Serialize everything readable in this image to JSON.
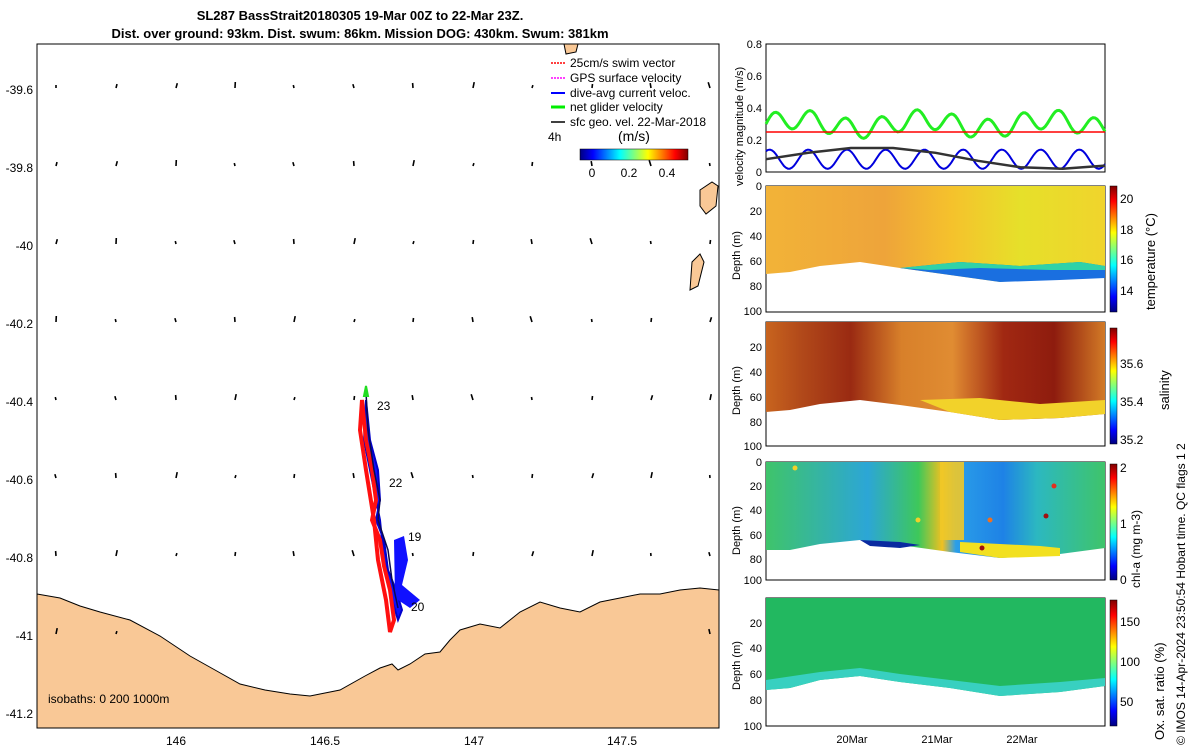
{
  "header": {
    "title_line1": "SL287 BassStrait20180305 19-Mar 00Z to 22-Mar 23Z.",
    "title_line2": "Dist. over ground: 93km. Dist. swum: 86km. Mission DOG: 430km. Swum: 381km"
  },
  "map": {
    "lon_ticks": [
      "146",
      "146.5",
      "147",
      "147.5"
    ],
    "lat_ticks": [
      "-39.6",
      "-39.8",
      "-40",
      "-40.2",
      "-40.4",
      "-40.6",
      "-40.8",
      "-41",
      "-41.2"
    ],
    "legend": [
      {
        "label": "25cm/s swim vector",
        "color": "#ff0000"
      },
      {
        "label": "GPS surface velocity",
        "color": "#ff00ff"
      },
      {
        "label": "dive-avg current veloc.",
        "color": "#0000ff"
      },
      {
        "label": "net glider velocity",
        "color": "#00ee00"
      },
      {
        "label": "sfc geo. vel. 22-Mar-2018",
        "color": "#000000"
      }
    ],
    "legend_tag": "4h",
    "colorbar_label": "(m/s)",
    "colorbar_ticks": [
      "0",
      "0.2",
      "0.4"
    ],
    "day_labels": [
      "23",
      "22",
      "19",
      "20"
    ],
    "isobaths_label": "isobaths: 0   200  1000m",
    "land_color": "#f9c896"
  },
  "chart_data": [
    {
      "type": "line",
      "title": "",
      "ylabel": "velocity magnitude (m/s)",
      "ylim": [
        0,
        0.8
      ],
      "yticks": [
        "0",
        "0.2",
        "0.4",
        "0.6",
        "0.8"
      ],
      "series": [
        {
          "name": "net glider velocity",
          "color": "#22ee22",
          "mean": 0.3,
          "amplitude": 0.06
        },
        {
          "name": "25cm/s swim vector",
          "color": "#ff0000",
          "value": 0.25
        },
        {
          "name": "dive-avg current veloc.",
          "color": "#0000dd",
          "mean": 0.08,
          "amplitude": 0.06
        },
        {
          "name": "sfc geo. vel.",
          "color": "#333333",
          "values": [
            0.08,
            0.12,
            0.15,
            0.15,
            0.12,
            0.07,
            0.03,
            0.02,
            0.04
          ]
        }
      ]
    },
    {
      "type": "heatmap",
      "ylabel": "Depth (m)",
      "yticks": [
        "0",
        "20",
        "40",
        "60",
        "80",
        "100"
      ],
      "colorbar_label": "temperature (°C)",
      "colorbar_ticks": [
        "20",
        "18",
        "16",
        "14"
      ],
      "clim": [
        13,
        20.5
      ]
    },
    {
      "type": "heatmap",
      "ylabel": "Depth (m)",
      "yticks": [
        "20",
        "40",
        "60",
        "80",
        "100"
      ],
      "colorbar_label": "salinity",
      "colorbar_ticks": [
        "35.6",
        "35.4",
        "35.2"
      ],
      "clim": [
        35.15,
        35.7
      ]
    },
    {
      "type": "heatmap",
      "ylabel": "Depth (m)",
      "yticks": [
        "0",
        "20",
        "40",
        "60",
        "80",
        "100"
      ],
      "colorbar_label": "chl-a (mg m-3)",
      "colorbar_ticks": [
        "2",
        "1",
        "0"
      ],
      "clim": [
        0,
        2
      ]
    },
    {
      "type": "heatmap",
      "ylabel": "Depth (m)",
      "yticks": [
        "20",
        "40",
        "60",
        "80",
        "100"
      ],
      "xticks": [
        "20Mar",
        "21Mar",
        "22Mar"
      ],
      "colorbar_label": "Ox. sat. ratio (%)",
      "colorbar_ticks": [
        "150",
        "100",
        "50"
      ],
      "clim": [
        25,
        175
      ]
    }
  ],
  "side_note": "© IMOS 14-Apr-2024 23:50:54 Hobart time. QC flags 1  2"
}
